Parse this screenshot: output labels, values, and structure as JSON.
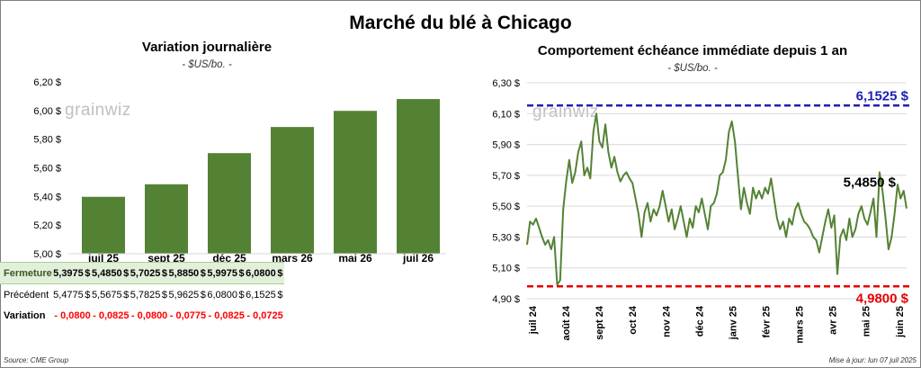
{
  "title": "Marché du blé à Chicago",
  "left": {
    "title": "Variation journalière",
    "unit": "- $US/bo. -",
    "logo": "grainwiz"
  },
  "right": {
    "title": "Comportement échéance immédiate depuis 1 an",
    "unit": "- $US/bo. -",
    "logo": "grainwiz"
  },
  "table": {
    "rows": [
      {
        "label": "Fermeture",
        "values": [
          "5,3975",
          "5,4850",
          "5,7025",
          "5,8850",
          "5,9975",
          "6,0800"
        ],
        "unit": "$"
      },
      {
        "label": "Précédent",
        "values": [
          "5,4775",
          "5,5675",
          "5,7825",
          "5,9625",
          "6,0800",
          "6,1525"
        ],
        "unit": "$"
      },
      {
        "label": "Variation",
        "values": [
          "- 0,0800",
          "- 0,0825",
          "- 0,0800",
          "- 0,0775",
          "- 0,0825",
          "- 0,0725"
        ]
      }
    ]
  },
  "footer": {
    "source": "Source: CME Group",
    "updated": "Mise à jour: lun 07 juil 2025"
  },
  "chart_data": [
    {
      "type": "bar",
      "categories": [
        "juil 25",
        "sept 25",
        "déc 25",
        "mars 26",
        "mai 26",
        "juil 26"
      ],
      "values": [
        5.3975,
        5.485,
        5.7025,
        5.885,
        5.9975,
        6.08
      ],
      "ylim": [
        5.0,
        6.2
      ],
      "yticks": [
        "5,00 $",
        "5,20 $",
        "5,40 $",
        "5,60 $",
        "5,80 $",
        "6,00 $",
        "6,20 $"
      ],
      "color": "#548235",
      "grid": false
    },
    {
      "type": "line",
      "xlabels": [
        "juil 24",
        "août 24",
        "sept 24",
        "oct 24",
        "nov 24",
        "déc 24",
        "janv 25",
        "févr 25",
        "mars 25",
        "avr 25",
        "mai 25",
        "juin 25"
      ],
      "ylim": [
        4.9,
        6.3
      ],
      "yticks": [
        "4,90 $",
        "5,10 $",
        "5,30 $",
        "5,50 $",
        "5,70 $",
        "5,90 $",
        "6,10 $",
        "6,30 $"
      ],
      "values": [
        5.25,
        5.4,
        5.38,
        5.42,
        5.36,
        5.3,
        5.25,
        5.28,
        5.22,
        5.3,
        4.99,
        5.02,
        5.48,
        5.66,
        5.8,
        5.65,
        5.72,
        5.85,
        5.92,
        5.7,
        5.75,
        5.68,
        5.98,
        6.1,
        5.92,
        5.88,
        6.03,
        5.85,
        5.75,
        5.82,
        5.72,
        5.66,
        5.7,
        5.72,
        5.68,
        5.65,
        5.55,
        5.45,
        5.3,
        5.46,
        5.52,
        5.4,
        5.48,
        5.44,
        5.5,
        5.6,
        5.5,
        5.4,
        5.48,
        5.35,
        5.42,
        5.5,
        5.4,
        5.3,
        5.42,
        5.36,
        5.5,
        5.46,
        5.55,
        5.45,
        5.35,
        5.5,
        5.52,
        5.58,
        5.7,
        5.72,
        5.8,
        5.98,
        6.05,
        5.92,
        5.7,
        5.48,
        5.62,
        5.52,
        5.45,
        5.62,
        5.55,
        5.6,
        5.55,
        5.62,
        5.58,
        5.68,
        5.55,
        5.42,
        5.35,
        5.4,
        5.3,
        5.42,
        5.38,
        5.48,
        5.52,
        5.45,
        5.4,
        5.38,
        5.35,
        5.3,
        5.28,
        5.2,
        5.3,
        5.4,
        5.48,
        5.36,
        5.44,
        5.06,
        5.3,
        5.35,
        5.28,
        5.42,
        5.3,
        5.35,
        5.45,
        5.5,
        5.42,
        5.38,
        5.46,
        5.55,
        5.3,
        5.72,
        5.6,
        5.42,
        5.22,
        5.3,
        5.45,
        5.64,
        5.55,
        5.6,
        5.485
      ],
      "reference_lines": [
        {
          "label": "6,1525 $",
          "value": 6.1525,
          "color": "#1f1fb4"
        },
        {
          "label": "4,9800 $",
          "value": 4.98,
          "color": "#e60000"
        }
      ],
      "last_label": "5,4850 $",
      "color": "#548235",
      "grid": true
    }
  ]
}
